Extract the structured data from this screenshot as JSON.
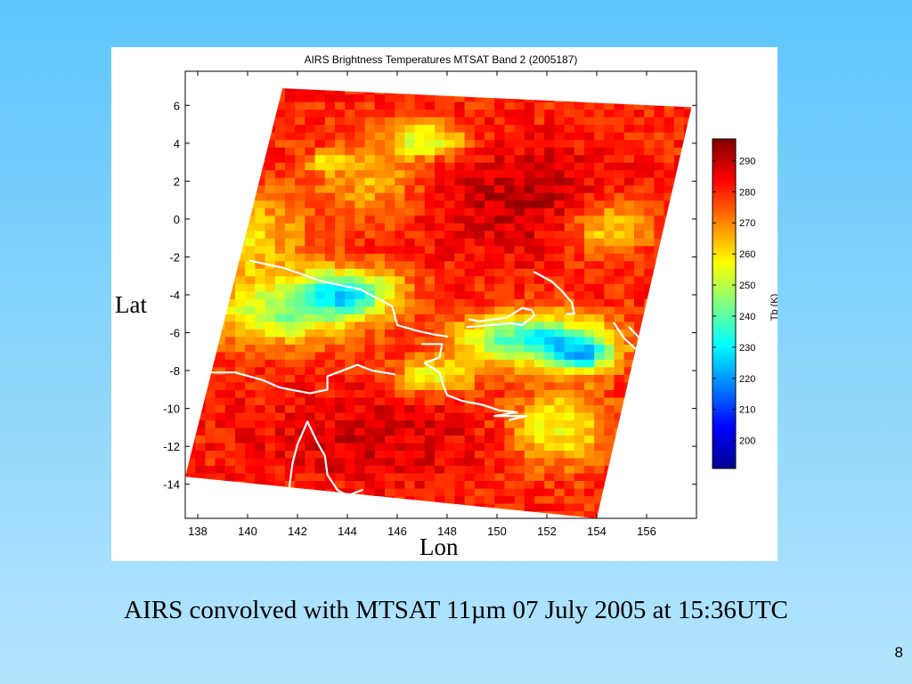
{
  "slide": {
    "caption": "AIRS convolved with MTSAT 11µm 07 July 2005 at 15:36UTC",
    "page_number": "8"
  },
  "chart_data": {
    "type": "heatmap",
    "title": "AIRS Brightness Temperatures MTSAT Band 2 (2005187)",
    "xlabel": "Lon",
    "ylabel": "Lat",
    "x_ticks": [
      138,
      140,
      142,
      144,
      146,
      148,
      150,
      152,
      154,
      156
    ],
    "y_ticks": [
      6,
      4,
      2,
      0,
      -2,
      -4,
      -6,
      -8,
      -10,
      -12,
      -14
    ],
    "xlim": [
      137.5,
      158
    ],
    "ylim": [
      -15.8,
      7.8
    ],
    "colorbar": {
      "label": "Tb (K)",
      "ticks": [
        200,
        210,
        220,
        230,
        240,
        250,
        260,
        270,
        280,
        290
      ],
      "range": [
        191,
        297
      ],
      "colormap": [
        "#00008f",
        "#0000ff",
        "#0080ff",
        "#00ffff",
        "#80ff80",
        "#ffff00",
        "#ff8000",
        "#ff0000",
        "#800000"
      ]
    },
    "swath_corners_lonlat": [
      [
        141.4,
        6.9
      ],
      [
        157.8,
        5.9
      ],
      [
        154.0,
        -15.8
      ],
      [
        137.5,
        -13.6
      ]
    ],
    "grid": false
  }
}
